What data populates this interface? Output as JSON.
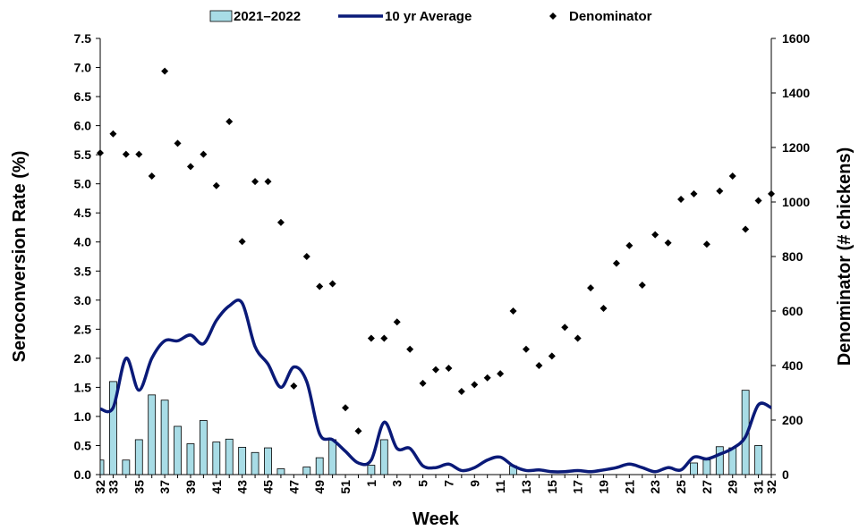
{
  "chart_data": {
    "type": "combo",
    "x_label": "Week",
    "y_label": "Seroconversion Rate (%)",
    "y2_label": "Denominator (# chickens)",
    "categories": [
      "32",
      "33",
      null,
      "35",
      null,
      "37",
      null,
      "39",
      null,
      "41",
      null,
      "43",
      null,
      "45",
      null,
      "47",
      null,
      "49",
      null,
      "51",
      null,
      "1",
      null,
      "3",
      null,
      "5",
      null,
      "7",
      null,
      "9",
      null,
      "11",
      null,
      "13",
      null,
      "15",
      null,
      "17",
      null,
      "19",
      null,
      "21",
      null,
      "23",
      null,
      "25",
      null,
      "27",
      null,
      "29",
      null,
      "31",
      "32"
    ],
    "ylim": [
      0,
      7.5
    ],
    "yticks": [
      {
        "value": 0,
        "label": "0.0"
      },
      0.5,
      {
        "value": 1,
        "label": "1.0"
      },
      1.5,
      {
        "value": 2,
        "label": "2.0"
      },
      2.5,
      {
        "value": 3,
        "label": "3.0"
      },
      3.5,
      {
        "value": 4,
        "label": "4.0"
      },
      4.5,
      {
        "value": 5,
        "label": "5.0"
      },
      5.5,
      {
        "value": 6,
        "label": "6.0"
      },
      6.5,
      {
        "value": 7,
        "label": "7.0"
      },
      7.5
    ],
    "y2lim": [
      0,
      1600
    ],
    "y2ticks": [
      0,
      200,
      400,
      600,
      800,
      1000,
      1200,
      1400,
      1600
    ],
    "series": [
      {
        "name": "2021–2022",
        "type": "bar",
        "color": "#a8dce6",
        "values": [
          0.25,
          1.6,
          0.25,
          0.6,
          1.37,
          1.28,
          0.83,
          0.53,
          0.93,
          0.56,
          0.61,
          0.47,
          0.38,
          0.46,
          0.1,
          0,
          0.13,
          0.29,
          0.6,
          0,
          0,
          0.16,
          0.6,
          0,
          0,
          0,
          0,
          0,
          0,
          0,
          0,
          0,
          0.15,
          0,
          0,
          0,
          0,
          0,
          0,
          0,
          0,
          0,
          0,
          0,
          0,
          0,
          0.2,
          0.25,
          0.48,
          0.46,
          1.45,
          0.5,
          null
        ]
      },
      {
        "name": "10 yr Average",
        "type": "line",
        "color": "#0a1a78",
        "values": [
          1.13,
          1.15,
          2.0,
          1.45,
          2.0,
          2.3,
          2.3,
          2.4,
          2.25,
          2.65,
          2.9,
          2.95,
          2.2,
          1.9,
          1.5,
          1.85,
          1.6,
          0.7,
          0.6,
          0.4,
          0.2,
          0.25,
          0.9,
          0.45,
          0.45,
          0.15,
          0.12,
          0.18,
          0.07,
          0.12,
          0.25,
          0.3,
          0.15,
          0.07,
          0.08,
          0.05,
          0.05,
          0.07,
          0.05,
          0.08,
          0.12,
          0.18,
          0.12,
          0.05,
          0.12,
          0.08,
          0.3,
          0.27,
          0.35,
          0.45,
          0.65,
          1.2,
          1.15
        ]
      },
      {
        "name": "Denominator",
        "type": "scatter",
        "axis": "y2",
        "color": "#000000",
        "values": [
          1180,
          1250,
          1175,
          1175,
          1095,
          1480,
          1215,
          1130,
          1175,
          1060,
          1295,
          855,
          1075,
          1075,
          925,
          325,
          800,
          690,
          700,
          245,
          160,
          500,
          500,
          560,
          460,
          335,
          385,
          390,
          305,
          330,
          355,
          370,
          600,
          460,
          400,
          435,
          540,
          500,
          685,
          610,
          775,
          840,
          695,
          880,
          850,
          1010,
          1030,
          845,
          1040,
          1095,
          900,
          1005,
          1030
        ]
      }
    ]
  }
}
